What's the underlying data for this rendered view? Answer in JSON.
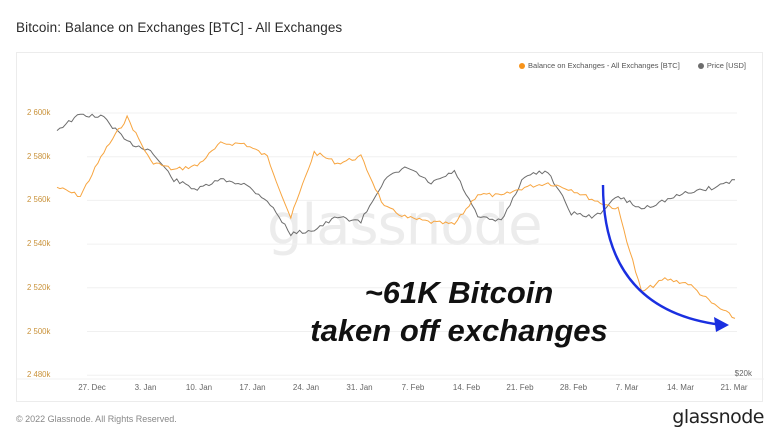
{
  "title": "Bitcoin: Balance on Exchanges [BTC] - All Exchanges",
  "legend": [
    {
      "label": "Balance on Exchanges - All Exchanges [BTC]",
      "color": "#f7931a"
    },
    {
      "label": "Price [USD]",
      "color": "#6d6d6d"
    }
  ],
  "watermark": "glassnode",
  "annotation": {
    "line1": "~61K Bitcoin",
    "line2": "taken off exchanges",
    "arrow_color": "#1a2fe0"
  },
  "footer": {
    "copyright": "© 2022 Glassnode. All Rights Reserved.",
    "logo": "glassnode"
  },
  "chart_data": {
    "type": "line",
    "title": "Bitcoin: Balance on Exchanges [BTC] - All Exchanges",
    "xlabel": "",
    "ylabel": "Balance on Exchanges [BTC]",
    "ylim": [
      2480000,
      2610000
    ],
    "yticks": [
      "2 480k",
      "2 500k",
      "2 520k",
      "2 540k",
      "2 560k",
      "2 580k",
      "2 600k"
    ],
    "right_axis_ticks": [
      "$20k"
    ],
    "xticks": [
      "27. Dec",
      "3. Jan",
      "10. Jan",
      "17. Jan",
      "24. Jan",
      "31. Jan",
      "7. Feb",
      "14. Feb",
      "21. Feb",
      "28. Feb",
      "7. Mar",
      "14. Mar",
      "21. Mar"
    ],
    "grid": true,
    "legend_position": "top-right",
    "series": [
      {
        "name": "Balance on Exchanges - All Exchanges [BTC]",
        "color": "#f7931a",
        "axis": "left",
        "x": [
          "22. Dec",
          "24. Dec",
          "27. Dec",
          "30. Dec",
          "3. Jan",
          "6. Jan",
          "10. Jan",
          "13. Jan",
          "17. Jan",
          "20. Jan",
          "24. Jan",
          "27. Jan",
          "31. Jan",
          "3. Feb",
          "7. Feb",
          "10. Feb",
          "14. Feb",
          "17. Feb",
          "21. Feb",
          "24. Feb",
          "28. Feb",
          "3. Mar",
          "7. Mar",
          "10. Mar",
          "12. Mar",
          "14. Mar",
          "17. Mar",
          "19. Mar",
          "21. Mar",
          "23. Mar"
        ],
        "values": [
          2566000,
          2562000,
          2582000,
          2598000,
          2578000,
          2574000,
          2576000,
          2586000,
          2586000,
          2580000,
          2552000,
          2582000,
          2577000,
          2580000,
          2557000,
          2552000,
          2550000,
          2549000,
          2563000,
          2562000,
          2566000,
          2568000,
          2565000,
          2560000,
          2556000,
          2518000,
          2524000,
          2522000,
          2513000,
          2506000
        ]
      },
      {
        "name": "Price [USD]",
        "color": "#6d6d6d",
        "axis": "right",
        "x": [
          "22. Dec",
          "24. Dec",
          "27. Dec",
          "30. Dec",
          "3. Jan",
          "6. Jan",
          "10. Jan",
          "13. Jan",
          "17. Jan",
          "20. Jan",
          "24. Jan",
          "27. Jan",
          "31. Jan",
          "3. Feb",
          "7. Feb",
          "10. Feb",
          "14. Feb",
          "17. Feb",
          "21. Feb",
          "24. Feb",
          "28. Feb",
          "3. Mar",
          "7. Mar",
          "10. Mar",
          "12. Mar",
          "14. Mar",
          "17. Mar",
          "19. Mar",
          "21. Mar",
          "23. Mar"
        ],
        "values": [
          49000,
          50800,
          50500,
          47500,
          46500,
          43000,
          41800,
          43000,
          42500,
          40500,
          36500,
          37000,
          38500,
          38000,
          43000,
          44500,
          42500,
          44000,
          38500,
          38000,
          43500,
          44000,
          39000,
          38500,
          41000,
          39500,
          40500,
          41500,
          42000,
          43000
        ]
      }
    ],
    "annotations": [
      {
        "text": "~61K Bitcoin taken off exchanges",
        "type": "arrow",
        "from": "4. Mar",
        "to": "23. Mar"
      }
    ]
  }
}
